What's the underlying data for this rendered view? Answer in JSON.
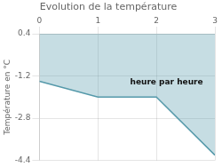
{
  "chart_data": {
    "type": "line",
    "title": "Evolution de la température",
    "y_label": "Température en °C",
    "annotations": [
      {
        "text": "heure par heure",
        "x": 1.55,
        "y": -1.3
      }
    ],
    "x": [
      0,
      1,
      2,
      3
    ],
    "values": [
      -1.4,
      -2.0,
      -2.0,
      -4.2
    ],
    "color": "#5599aa",
    "xlim": [
      0,
      3
    ],
    "xticks": [
      0,
      1,
      2,
      3
    ],
    "ylim": [
      -4.4,
      0.4
    ],
    "yticks": [
      -4.4,
      -2.8,
      -1.2,
      0.4
    ],
    "grid": true
  }
}
